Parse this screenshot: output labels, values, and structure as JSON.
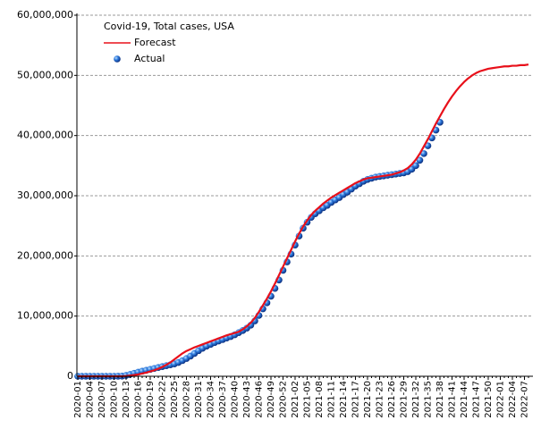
{
  "chart_data": {
    "type": "line",
    "title": "Covid-19, Total cases, USA",
    "categories": [
      "2020-01",
      null,
      null,
      "2020-04",
      null,
      null,
      "2020-07",
      null,
      null,
      "2020-10",
      null,
      null,
      "2020-13",
      null,
      null,
      "2020-16",
      null,
      null,
      "2020-19",
      null,
      null,
      "2020-22",
      null,
      null,
      "2020-25",
      null,
      null,
      "2020-28",
      null,
      null,
      "2020-31",
      null,
      null,
      "2020-34",
      null,
      null,
      "2020-37",
      null,
      null,
      "2020-40",
      null,
      null,
      "2020-43",
      null,
      null,
      "2020-46",
      null,
      null,
      "2020-49",
      null,
      null,
      "2020-52",
      null,
      null,
      "2021-02",
      null,
      null,
      "2021-05",
      null,
      null,
      "2021-08",
      null,
      null,
      "2021-11",
      null,
      null,
      "2021-14",
      null,
      null,
      "2021-17",
      null,
      null,
      "2021-20",
      null,
      null,
      "2021-23",
      null,
      null,
      "2021-26",
      null,
      null,
      "2021-29",
      null,
      null,
      "2021-32",
      null,
      null,
      "2021-35",
      null,
      null,
      "2021-38",
      null,
      null,
      "2021-41",
      null,
      null,
      "2021-44",
      null,
      null,
      "2021-47",
      null,
      null,
      "2021-50",
      null,
      null,
      "2022-01",
      null,
      null,
      "2022-04",
      null,
      null,
      "2022-07",
      null
    ],
    "series": [
      {
        "name": "Forecast",
        "color": "#e8101a",
        "mode": "line",
        "values": [
          0,
          0,
          0,
          0,
          0,
          0,
          0,
          0,
          0,
          0,
          0,
          0,
          50000,
          120000,
          200000,
          300000,
          450000,
          600000,
          800000,
          1000000,
          1250000,
          1550000,
          1900000,
          2300000,
          2800000,
          3300000,
          3800000,
          4200000,
          4500000,
          4800000,
          5050000,
          5300000,
          5550000,
          5800000,
          6050000,
          6300000,
          6550000,
          6800000,
          7000000,
          7200000,
          7400000,
          7800000,
          8300000,
          8900000,
          9700000,
          10700000,
          11800000,
          12900000,
          14100000,
          15400000,
          16800000,
          18200000,
          19600000,
          21000000,
          22400000,
          23700000,
          24900000,
          25900000,
          26800000,
          27500000,
          28100000,
          28700000,
          29200000,
          29700000,
          30100000,
          30500000,
          30900000,
          31300000,
          31700000,
          32100000,
          32400000,
          32700000,
          32900000,
          33000000,
          33100000,
          33200000,
          33300000,
          33400000,
          33500000,
          33700000,
          33900000,
          34200000,
          34600000,
          35200000,
          36000000,
          37000000,
          38200000,
          39400000,
          40700000,
          42000000,
          43200000,
          44400000,
          45500000,
          46500000,
          47400000,
          48200000,
          48900000,
          49500000,
          50000000,
          50400000,
          50700000,
          50900000,
          51100000,
          51200000,
          51300000,
          51400000,
          51500000,
          51500000,
          51600000,
          51600000,
          51700000,
          51700000,
          51800000
        ]
      },
      {
        "name": "Actual",
        "color": "#1a5fd0",
        "mode": "markers",
        "values": [
          0,
          0,
          0,
          0,
          0,
          0,
          0,
          0,
          0,
          1000,
          3000,
          30000,
          140000,
          310000,
          500000,
          680000,
          850000,
          1000000,
          1150000,
          1300000,
          1450000,
          1600000,
          1750000,
          1900000,
          2050000,
          2300000,
          2600000,
          2950000,
          3350000,
          3800000,
          4250000,
          4650000,
          5000000,
          5300000,
          5600000,
          5850000,
          6100000,
          6350000,
          6600000,
          6900000,
          7250000,
          7600000,
          8000000,
          8500000,
          9200000,
          10100000,
          11200000,
          12200000,
          13300000,
          14600000,
          16000000,
          17600000,
          19000000,
          20300000,
          21800000,
          23300000,
          24600000,
          25600000,
          26400000,
          27000000,
          27500000,
          28000000,
          28400000,
          28900000,
          29300000,
          29700000,
          30200000,
          30600000,
          31100000,
          31600000,
          32000000,
          32400000,
          32700000,
          32900000,
          33100000,
          33200000,
          33300000,
          33400000,
          33500000,
          33600000,
          33700000,
          33800000,
          34000000,
          34400000,
          35000000,
          35900000,
          37000000,
          38300000,
          39600000,
          40900000,
          42200000,
          null,
          null,
          null,
          null,
          null,
          null,
          null,
          null,
          null,
          null,
          null,
          null,
          null,
          null,
          null,
          null,
          null,
          null,
          null,
          null,
          null,
          null
        ]
      }
    ],
    "ylim": [
      0,
      60000000
    ],
    "yticks": [
      {
        "value": 0,
        "label": "0"
      },
      {
        "value": 10000000,
        "label": "10,000,000"
      },
      {
        "value": 20000000,
        "label": "20,000,000"
      },
      {
        "value": 30000000,
        "label": "30,000,000"
      },
      {
        "value": 40000000,
        "label": "40,000,000"
      },
      {
        "value": 50000000,
        "label": "50,000,000"
      },
      {
        "value": 60000000,
        "label": "60,000,000"
      }
    ],
    "grid": true,
    "legend": "upper-left"
  }
}
